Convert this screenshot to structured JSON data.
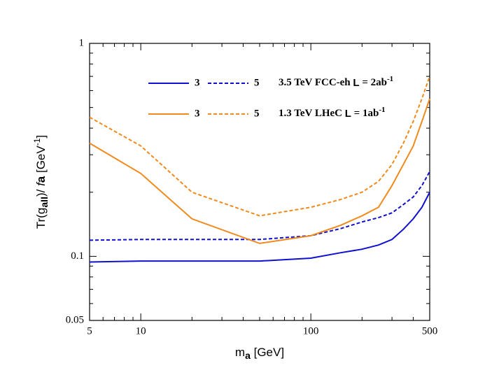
{
  "chart_data": {
    "type": "line",
    "xlabel": {
      "main": "m",
      "sub": "a",
      "unit": " [GeV]"
    },
    "ylabel": {
      "pre": "Tr(g",
      "sub": "aII",
      "mid": ")/ ",
      "f": "f",
      "a": "a",
      "unit": " [GeV",
      "exp": "-1",
      "end": "]"
    },
    "xlog": true,
    "ylog": true,
    "xlim": [
      5,
      500
    ],
    "ylim": [
      0.05,
      1
    ],
    "xticks": [
      5,
      10,
      100,
      500
    ],
    "yticks": [
      0.05,
      0.1,
      1
    ],
    "xminorticks": [
      6,
      7,
      8,
      9,
      20,
      30,
      40,
      50,
      60,
      70,
      80,
      90,
      200,
      300,
      400
    ],
    "yminorticks": [
      0.06,
      0.07,
      0.08,
      0.09,
      0.2,
      0.3,
      0.4,
      0.5,
      0.6,
      0.7,
      0.8,
      0.9
    ],
    "x": [
      5,
      10,
      20,
      50,
      100,
      150,
      200,
      250,
      300,
      350,
      400,
      450,
      500
    ],
    "groups": [
      {
        "label": "3.5 TeV FCC-eh ",
        "L": "L",
        "rest": " = 2ab",
        "exp": "-1",
        "series": [
          {
            "name": "3",
            "color": "#1010d0",
            "dashed": false,
            "values": [
              0.094,
              0.095,
              0.095,
              0.095,
              0.098,
              0.104,
              0.108,
              0.113,
              0.12,
              0.134,
              0.15,
              0.17,
              0.2
            ]
          },
          {
            "name": "5",
            "color": "#1010d0",
            "dashed": true,
            "values": [
              0.119,
              0.12,
              0.12,
              0.12,
              0.125,
              0.135,
              0.145,
              0.152,
              0.16,
              0.175,
              0.19,
              0.215,
              0.25
            ]
          }
        ]
      },
      {
        "label": "1.3 TeV LHeC ",
        "L": "L",
        "rest": " = 1ab",
        "exp": "-1",
        "series": [
          {
            "name": "3",
            "color": "#f08a1c",
            "dashed": false,
            "values": [
              0.34,
              0.245,
              0.15,
              0.115,
              0.125,
              0.14,
              0.155,
              0.17,
              0.215,
              0.27,
              0.33,
              0.43,
              0.55
            ]
          },
          {
            "name": "5",
            "color": "#f08a1c",
            "dashed": true,
            "values": [
              0.45,
              0.33,
              0.2,
              0.155,
              0.17,
              0.185,
              0.2,
              0.225,
              0.27,
              0.34,
              0.43,
              0.55,
              0.7
            ]
          }
        ]
      }
    ]
  }
}
